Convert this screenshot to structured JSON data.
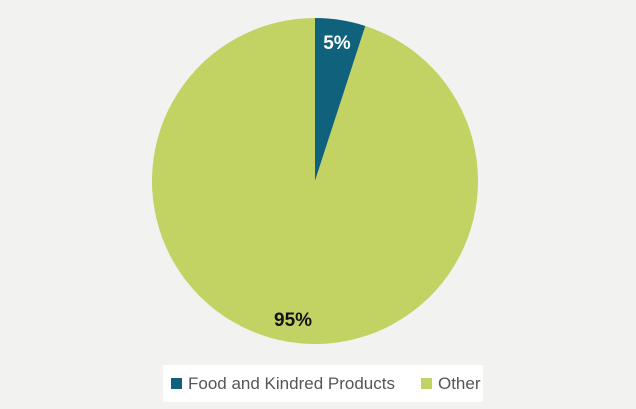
{
  "background_color": "#f2f2f1",
  "chart_data": {
    "type": "pie",
    "title": "",
    "categories": [
      "Food and Kindred Products",
      "Other"
    ],
    "values": [
      5,
      95
    ],
    "data_labels": [
      "5%",
      "95%"
    ],
    "colors": [
      "#0f617c",
      "#c2d364"
    ],
    "data_label_colors": [
      "#ffffff",
      "#121212"
    ],
    "start_angle_deg": 0,
    "direction": "clockwise",
    "grid": false,
    "legend": {
      "position": "bottom",
      "entries": [
        "Food and Kindred Products",
        "Other"
      ],
      "background": "#ffffff",
      "text_color": "#54565c"
    }
  }
}
